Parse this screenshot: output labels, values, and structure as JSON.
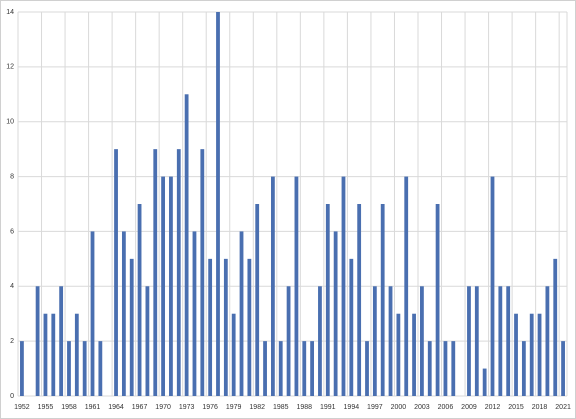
{
  "chart_data": {
    "type": "bar",
    "color": "#4a6fb0",
    "grid": true,
    "categories": [
      "1952",
      null,
      null,
      "1955",
      null,
      null,
      "1958",
      null,
      null,
      "1961",
      null,
      null,
      "1964",
      null,
      null,
      "1967",
      null,
      null,
      "1970",
      null,
      null,
      "1973",
      null,
      null,
      "1976",
      null,
      null,
      "1979",
      null,
      null,
      "1982",
      null,
      null,
      "1985",
      null,
      null,
      "1988",
      null,
      null,
      "1991",
      null,
      null,
      "1994",
      null,
      null,
      "1997",
      null,
      null,
      "2000",
      null,
      null,
      "2003",
      null,
      null,
      "2006",
      null,
      null,
      "2009",
      null,
      null,
      "2012",
      null,
      null,
      "2015",
      null,
      null,
      "2018",
      null,
      null,
      "2021"
    ],
    "values": [
      2,
      0,
      4,
      3,
      3,
      4,
      2,
      3,
      2,
      6,
      2,
      0,
      9,
      6,
      5,
      7,
      4,
      9,
      8,
      8,
      9,
      11,
      6,
      9,
      5,
      14,
      5,
      3,
      6,
      5,
      7,
      2,
      8,
      2,
      4,
      8,
      2,
      2,
      4,
      7,
      6,
      8,
      5,
      7,
      2,
      4,
      7,
      4,
      3,
      8,
      3,
      4,
      2,
      7,
      2,
      2,
      0,
      4,
      4,
      1,
      8,
      4,
      4,
      3,
      2,
      3,
      3,
      4,
      5,
      2
    ],
    "ylim": [
      0,
      14
    ],
    "yticks": [
      0,
      2,
      4,
      6,
      8,
      10,
      12,
      14
    ]
  }
}
